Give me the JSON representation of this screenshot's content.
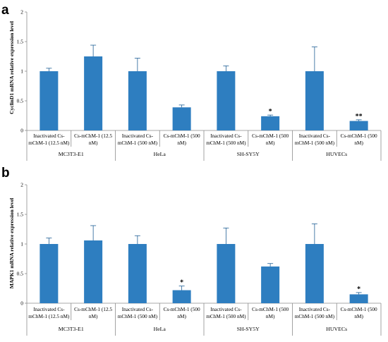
{
  "colors": {
    "bar": "#2e7ec0",
    "axis": "#8c8c8c",
    "error": "#1f5f95"
  },
  "chart_data": [
    {
      "type": "bar",
      "panel_label": "a",
      "ylabel": "CyclinD1 mRNA relative expression level",
      "ylim": [
        0,
        2
      ],
      "yticks": [
        "0",
        "0.5",
        "1",
        "1.5",
        "2"
      ],
      "categories": [
        [
          "Inactivated Cs-",
          "mChM-1 (12.5 nM)"
        ],
        [
          "Cs-mChM-1 (12.5",
          "nM)"
        ],
        [
          "Inactivated Cs-",
          "mChM-1 (500 nM)"
        ],
        [
          "Cs-mChM-1 (500",
          "nM)"
        ],
        [
          "Inactivated Cs-",
          "mChM-1 (500 nM)"
        ],
        [
          "Cs-mChM-1 (500",
          "nM)"
        ],
        [
          "Inactivated Cs-",
          "mChM-1 (500 nM)"
        ],
        [
          "Cs-mChM-1 (500",
          "nM)"
        ]
      ],
      "groups": [
        "MC3T3-E1",
        "HeLa",
        "SH-SY5Y",
        "HUVECs"
      ],
      "values": [
        1.0,
        1.25,
        1.0,
        0.39,
        1.0,
        0.24,
        1.0,
        0.16
      ],
      "errors": [
        0.05,
        0.19,
        0.22,
        0.04,
        0.09,
        0.02,
        0.41,
        0.02
      ],
      "significance": [
        "",
        "",
        "",
        "",
        "",
        "*",
        "",
        "**"
      ],
      "grid": false
    },
    {
      "type": "bar",
      "panel_label": "b",
      "ylabel": "MAPK1 mRNA relative expression level",
      "ylim": [
        0,
        2
      ],
      "yticks": [
        "0",
        "0.5",
        "1",
        "1.5",
        "2"
      ],
      "categories": [
        [
          "Inactivated Cs-",
          "mChM-1 (12.5 nM)"
        ],
        [
          "Cs-mChM-1 (12.5",
          "nM)"
        ],
        [
          "Inactivated Cs-",
          "mChM-1 (500 nM)"
        ],
        [
          "Cs-mChM-1 (500",
          "nM)"
        ],
        [
          "Inactivated Cs-",
          "mChM-1 (500 nM)"
        ],
        [
          "Cs-mChM-1 (500",
          "nM)"
        ],
        [
          "Inactivated Cs-",
          "mChM-1 (500 nM)"
        ],
        [
          "Cs-mChM-1 (500",
          "nM)"
        ]
      ],
      "groups": [
        "MC3T3-E1",
        "HeLa",
        "SH-SY5Y",
        "HUVECs"
      ],
      "values": [
        1.0,
        1.06,
        1.0,
        0.22,
        1.0,
        0.62,
        1.0,
        0.15
      ],
      "errors": [
        0.1,
        0.25,
        0.14,
        0.07,
        0.27,
        0.05,
        0.34,
        0.03
      ],
      "significance": [
        "",
        "",
        "",
        "*",
        "",
        "",
        "",
        "*"
      ],
      "grid": false
    }
  ]
}
